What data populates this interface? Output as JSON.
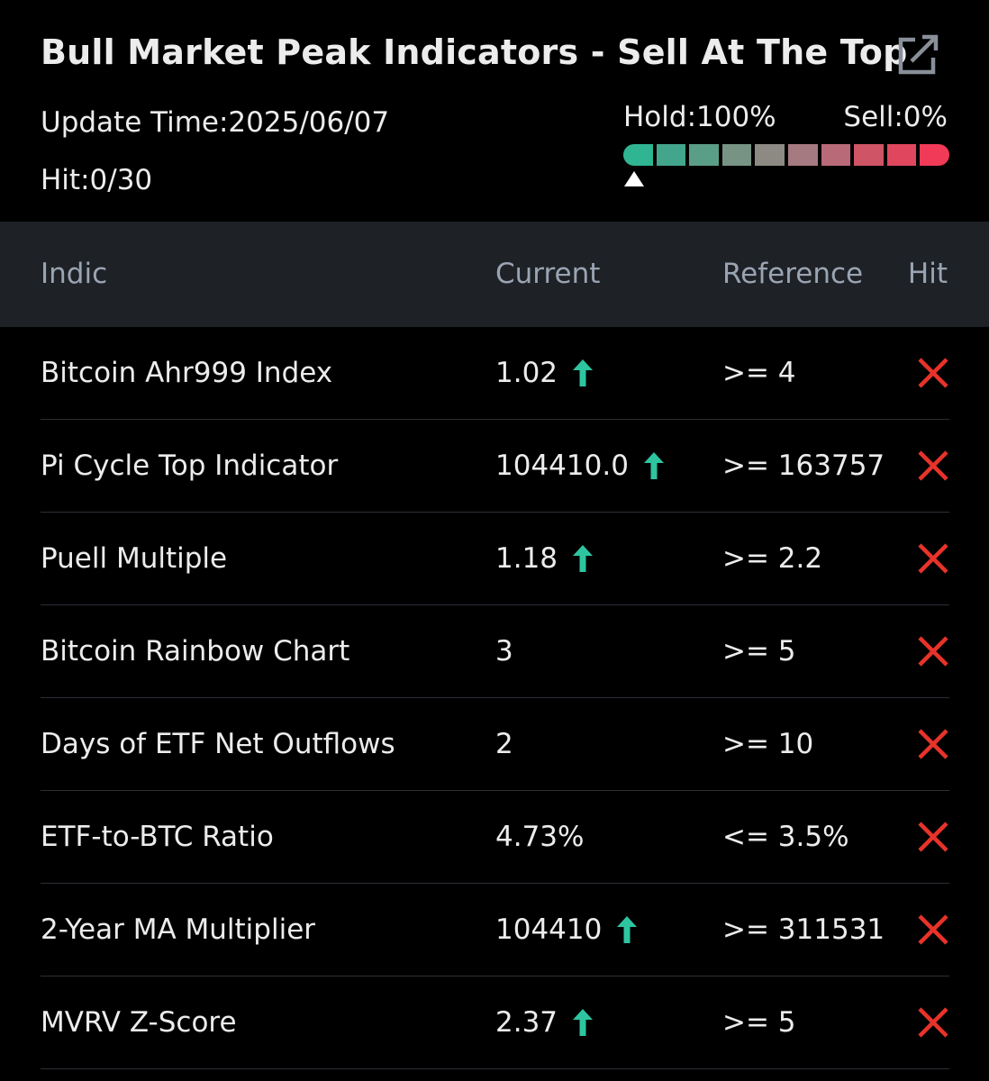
{
  "header": {
    "title": "Bull Market Peak Indicators - Sell At The Top",
    "share_icon": "share-external-icon",
    "update_time": "Update Time:2025/06/07",
    "hit_count": "Hit:0/30",
    "hold_label": "Hold:100%",
    "sell_label": "Sell:0%",
    "gauge": {
      "hold_fraction": 1.0,
      "colors": [
        "#2fb592",
        "#43a68c",
        "#5b9e88",
        "#779384",
        "#8d8a84",
        "#a57a80",
        "#b96a78",
        "#cf5566",
        "#e0475e",
        "#f03a57"
      ]
    }
  },
  "table": {
    "columns": {
      "indic": "Indic",
      "current": "Current",
      "reference": "Reference",
      "hit": "Hit"
    },
    "up_arrow_color": "#2ec4a0",
    "x_color": "#e8332a",
    "rows": [
      {
        "name": "Bitcoin Ahr999 Index",
        "current": "1.02",
        "trend": "up",
        "reference": ">= 4",
        "hit": "no"
      },
      {
        "name": "Pi Cycle Top Indicator",
        "current": "104410.0",
        "trend": "up",
        "reference": ">= 163757",
        "hit": "no"
      },
      {
        "name": "Puell Multiple",
        "current": "1.18",
        "trend": "up",
        "reference": ">= 2.2",
        "hit": "no"
      },
      {
        "name": "Bitcoin Rainbow Chart",
        "current": "3",
        "trend": "",
        "reference": ">= 5",
        "hit": "no"
      },
      {
        "name": "Days of ETF Net Outflows",
        "current": "2",
        "trend": "",
        "reference": ">= 10",
        "hit": "no"
      },
      {
        "name": "ETF-to-BTC Ratio",
        "current": "4.73%",
        "trend": "",
        "reference": "<= 3.5%",
        "hit": "no"
      },
      {
        "name": "2-Year MA Multiplier",
        "current": "104410",
        "trend": "up",
        "reference": ">= 311531",
        "hit": "no"
      },
      {
        "name": "MVRV Z-Score",
        "current": "2.37",
        "trend": "up",
        "reference": ">= 5",
        "hit": "no"
      }
    ]
  }
}
